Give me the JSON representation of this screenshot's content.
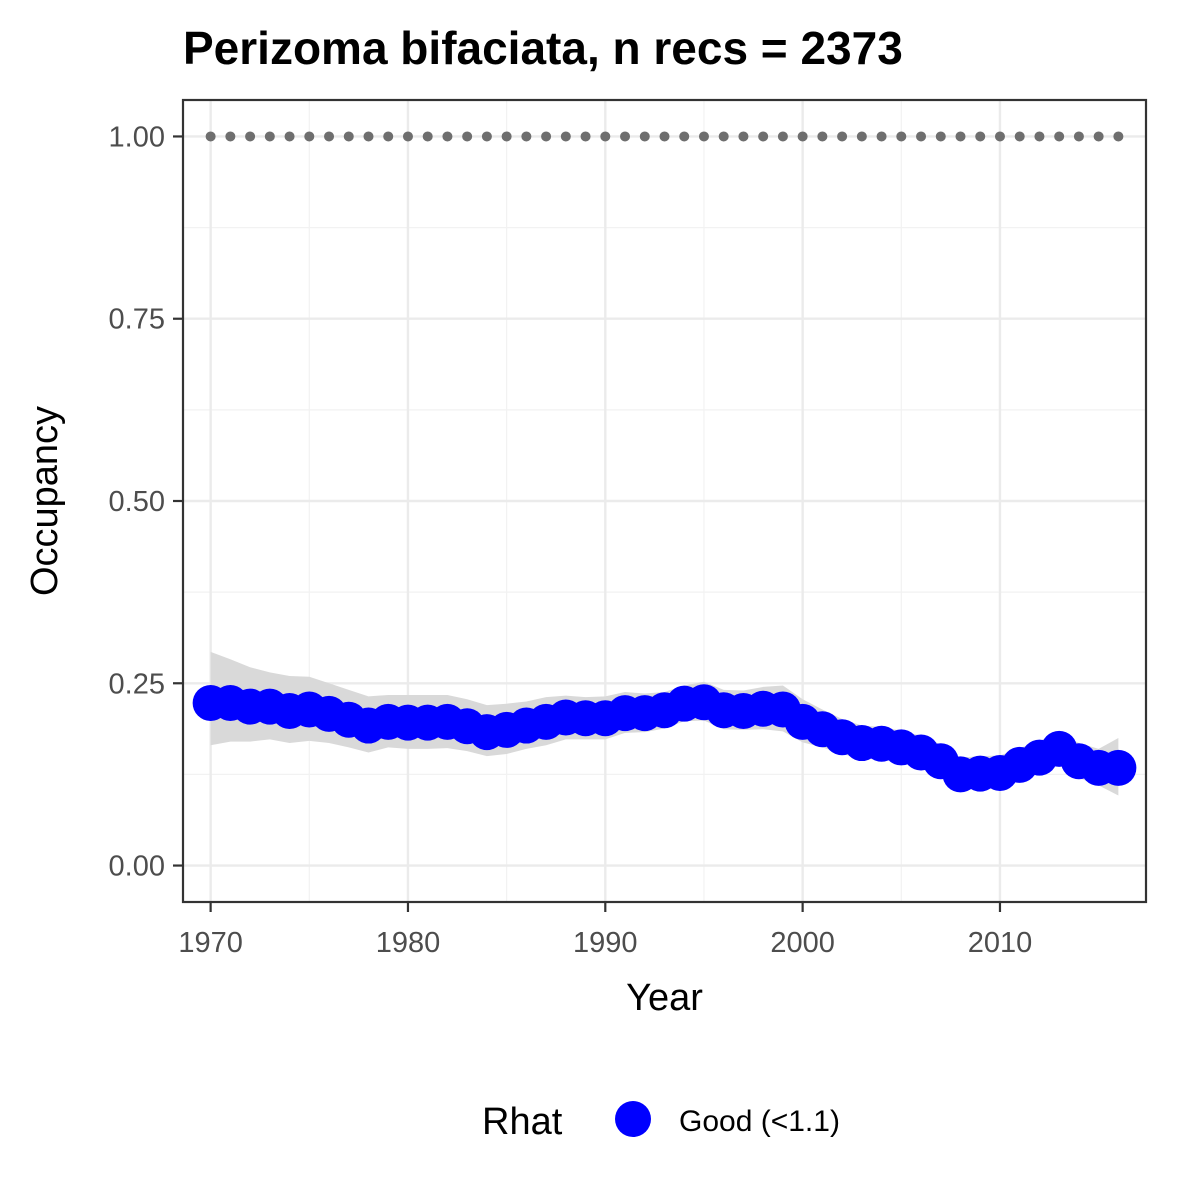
{
  "chart_data": {
    "type": "line",
    "title": "Perizoma bifaciata, n recs = 2373",
    "xlabel": "Year",
    "ylabel": "Occupancy",
    "xlim": [
      1968.6,
      2017.4
    ],
    "ylim": [
      -0.05,
      1.05
    ],
    "x_ticks": [
      1970,
      1980,
      1990,
      2000,
      2010
    ],
    "x_tick_labels": [
      "1970",
      "1980",
      "1990",
      "2000",
      "2010"
    ],
    "y_ticks": [
      0,
      0.25,
      0.5,
      0.75,
      1.0
    ],
    "y_tick_labels": [
      "0.00",
      "0.25",
      "0.50",
      "0.75",
      "1.00"
    ],
    "grid": true,
    "x": [
      1970,
      1971,
      1972,
      1973,
      1974,
      1975,
      1976,
      1977,
      1978,
      1979,
      1980,
      1981,
      1982,
      1983,
      1984,
      1985,
      1986,
      1987,
      1988,
      1989,
      1990,
      1991,
      1992,
      1993,
      1994,
      1995,
      1996,
      1997,
      1998,
      1999,
      2000,
      2001,
      2002,
      2003,
      2004,
      2005,
      2006,
      2007,
      2008,
      2009,
      2010,
      2011,
      2012,
      2013,
      2014,
      2015,
      2016
    ],
    "series": [
      {
        "name": "Good (<1.1)",
        "color": "#0000ff",
        "values": [
          0.223,
          0.223,
          0.218,
          0.218,
          0.212,
          0.214,
          0.208,
          0.2,
          0.192,
          0.197,
          0.196,
          0.196,
          0.197,
          0.191,
          0.183,
          0.186,
          0.192,
          0.197,
          0.203,
          0.202,
          0.202,
          0.209,
          0.209,
          0.213,
          0.222,
          0.224,
          0.213,
          0.212,
          0.215,
          0.214,
          0.197,
          0.187,
          0.176,
          0.168,
          0.167,
          0.162,
          0.155,
          0.143,
          0.125,
          0.126,
          0.127,
          0.138,
          0.148,
          0.16,
          0.143,
          0.134,
          0.134
        ]
      }
    ],
    "ci_upper": [
      0.293,
      0.283,
      0.272,
      0.265,
      0.26,
      0.259,
      0.25,
      0.241,
      0.232,
      0.234,
      0.234,
      0.234,
      0.234,
      0.228,
      0.22,
      0.222,
      0.225,
      0.231,
      0.233,
      0.231,
      0.232,
      0.238,
      0.236,
      0.238,
      0.247,
      0.252,
      0.241,
      0.24,
      0.245,
      0.247,
      0.228,
      0.214,
      0.201,
      0.192,
      0.19,
      0.185,
      0.178,
      0.166,
      0.148,
      0.15,
      0.151,
      0.161,
      0.171,
      0.182,
      0.168,
      0.16,
      0.175
    ],
    "ci_lower": [
      0.165,
      0.17,
      0.17,
      0.173,
      0.168,
      0.171,
      0.168,
      0.162,
      0.155,
      0.162,
      0.16,
      0.16,
      0.161,
      0.157,
      0.15,
      0.153,
      0.16,
      0.165,
      0.173,
      0.173,
      0.173,
      0.182,
      0.183,
      0.188,
      0.198,
      0.199,
      0.187,
      0.186,
      0.187,
      0.184,
      0.169,
      0.162,
      0.153,
      0.146,
      0.146,
      0.141,
      0.134,
      0.122,
      0.105,
      0.105,
      0.106,
      0.117,
      0.127,
      0.14,
      0.12,
      0.11,
      0.096
    ],
    "reference_value": 1.0,
    "ci_color": "#d9d9d9",
    "reference_color": "#6e6e6e",
    "legend": {
      "title": "Rhat",
      "label": "Good (<1.1)",
      "position": "bottom"
    }
  }
}
